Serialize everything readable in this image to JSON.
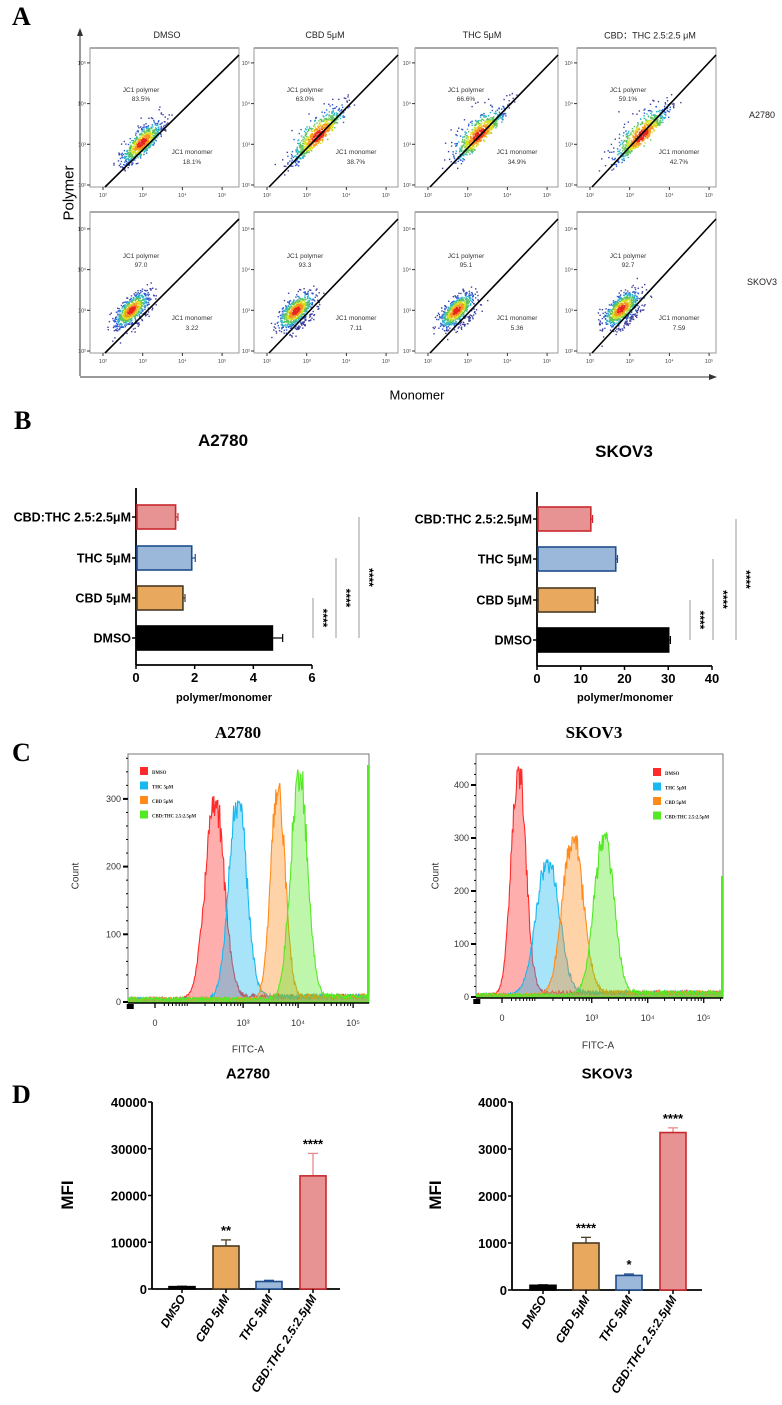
{
  "panel_labels": {
    "a": "A",
    "b": "B",
    "c": "C",
    "d": "D"
  },
  "chart_data": [
    {
      "panel": "A",
      "type": "scatter",
      "conditions": [
        "DMSO",
        "CBD 5μM",
        "THC 5μM",
        "CBD：THC 2.5:2.5 μM"
      ],
      "cell_lines": [
        "A2780",
        "SKOV3"
      ],
      "gate_labels": {
        "upper": "JC1 polymer",
        "lower": "JC1 monomer"
      },
      "polymer": [
        [
          "83.5%",
          "63.0%",
          "66.6%",
          "59.1%"
        ],
        [
          "97.0",
          "93.3",
          "95.1",
          "92.7"
        ]
      ],
      "monomer": [
        [
          "18.1%",
          "38.7%",
          "34.9%",
          "42.7%"
        ],
        [
          "3.22",
          "7.11",
          "5.36",
          "7.59"
        ]
      ],
      "xlabel": "Monomer",
      "ylabel": "Polymer",
      "tick_labels": [
        "10²",
        "10³",
        "10⁴",
        "10⁵"
      ],
      "axis_scale": "log",
      "axis_range_log10": [
        2,
        5
      ]
    },
    {
      "panel": "B",
      "type": "bar",
      "orientation": "horizontal",
      "title": "A2780",
      "categories": [
        "CBD:THC 2.5:2.5μM",
        "THC 5μM",
        "CBD 5μM",
        "DMSO"
      ],
      "values": [
        1.35,
        1.9,
        1.6,
        4.65
      ],
      "errors": [
        0.08,
        0.12,
        0.07,
        0.35
      ],
      "colors": [
        "#e89393",
        "#9bb7d9",
        "#e8a95e",
        "#000000"
      ],
      "edge_colors": [
        "#c8282d",
        "#1f4d8d",
        "#4a3b22",
        "#000000"
      ],
      "xlabel": "polymer/monomer",
      "xlim": [
        0,
        6
      ],
      "xticks": [
        "0",
        "2",
        "4",
        "6"
      ],
      "significance": [
        "****",
        "****",
        "****"
      ]
    },
    {
      "panel": "B",
      "type": "bar",
      "orientation": "horizontal",
      "title": "SKOV3",
      "categories": [
        "CBD:THC 2.5:2.5μM",
        "THC 5μM",
        "CBD 5μM",
        "DMSO"
      ],
      "values": [
        12.3,
        18.0,
        13.3,
        30.1
      ],
      "errors": [
        0.4,
        0.4,
        0.6,
        0.4
      ],
      "colors": [
        "#e89393",
        "#9bb7d9",
        "#e8a95e",
        "#000000"
      ],
      "edge_colors": [
        "#c8282d",
        "#1f4d8d",
        "#4a3b22",
        "#000000"
      ],
      "xlabel": "polymer/monomer",
      "xlim": [
        0,
        40
      ],
      "xticks": [
        "0",
        "10",
        "20",
        "30",
        "40"
      ],
      "significance": [
        "****",
        "****",
        "****"
      ]
    },
    {
      "panel": "C",
      "type": "area",
      "title": "A2780",
      "xlabel": "FITC-A",
      "ylabel": "Count",
      "xtick_labels": [
        "0",
        "10³",
        "10⁴",
        "10⁵"
      ],
      "yticks": [
        "0",
        "100",
        "200",
        "300"
      ],
      "ylim": [
        0,
        370
      ],
      "series": [
        {
          "name": "DMSO",
          "color": "#ff2a2a",
          "peak_fitc": 300,
          "peak_count": 305
        },
        {
          "name": "THC 5μM",
          "color": "#1ab8f0",
          "peak_fitc": 800,
          "peak_count": 300
        },
        {
          "name": "CBD 5μM",
          "color": "#ff8c1a",
          "peak_fitc": 4300,
          "peak_count": 325
        },
        {
          "name": "CBD:THC 2.5:2.5μM",
          "color": "#55e825",
          "peak_fitc": 10400,
          "peak_count": 345
        }
      ]
    },
    {
      "panel": "C",
      "type": "area",
      "title": "SKOV3",
      "xlabel": "FITC-A",
      "ylabel": "Count",
      "xtick_labels": [
        "0",
        "10³",
        "10⁴",
        "10⁵"
      ],
      "yticks": [
        "0",
        "100",
        "200",
        "300",
        "400"
      ],
      "ylim": [
        0,
        460
      ],
      "series": [
        {
          "name": "DMSO",
          "color": "#ff2a2a",
          "peak_fitc": 37,
          "peak_count": 435
        },
        {
          "name": "THC 5μM",
          "color": "#1ab8f0",
          "peak_fitc": 160,
          "peak_count": 260
        },
        {
          "name": "CBD 5μM",
          "color": "#ff8c1a",
          "peak_fitc": 460,
          "peak_count": 305
        },
        {
          "name": "CBD:THC 2.5:2.5μM",
          "color": "#55e825",
          "peak_fitc": 1650,
          "peak_count": 310
        }
      ]
    },
    {
      "panel": "D",
      "type": "bar",
      "title": "A2780",
      "ylabel": "MFI",
      "categories": [
        "DMSO",
        "CBD 5μM",
        "THC 5μM",
        "CBD:THC 2.5:2.5μM"
      ],
      "values": [
        500,
        9200,
        1600,
        24200
      ],
      "errors": [
        80,
        1300,
        250,
        4800
      ],
      "colors": [
        "#000000",
        "#e8a95e",
        "#9bb7d9",
        "#e89393"
      ],
      "edge_colors": [
        "#000000",
        "#4a3b22",
        "#1f4d8d",
        "#c8282d"
      ],
      "ylim": [
        0,
        40000
      ],
      "yticks": [
        "0",
        "10000",
        "20000",
        "30000",
        "40000"
      ],
      "significance": [
        "",
        "**",
        "",
        "****"
      ]
    },
    {
      "panel": "D",
      "type": "bar",
      "title": "SKOV3",
      "ylabel": "MFI",
      "categories": [
        "DMSO",
        "CBD 5μM",
        "THC 5μM",
        "CBD:THC 2.5:2.5μM"
      ],
      "values": [
        100,
        1000,
        310,
        3350
      ],
      "errors": [
        10,
        120,
        30,
        100
      ],
      "colors": [
        "#000000",
        "#e8a95e",
        "#9bb7d9",
        "#e89393"
      ],
      "edge_colors": [
        "#000000",
        "#4a3b22",
        "#1f4d8d",
        "#c8282d"
      ],
      "ylim": [
        0,
        4000
      ],
      "yticks": [
        "0",
        "1000",
        "2000",
        "3000",
        "4000"
      ],
      "significance": [
        "",
        "****",
        "*",
        "****"
      ]
    }
  ]
}
